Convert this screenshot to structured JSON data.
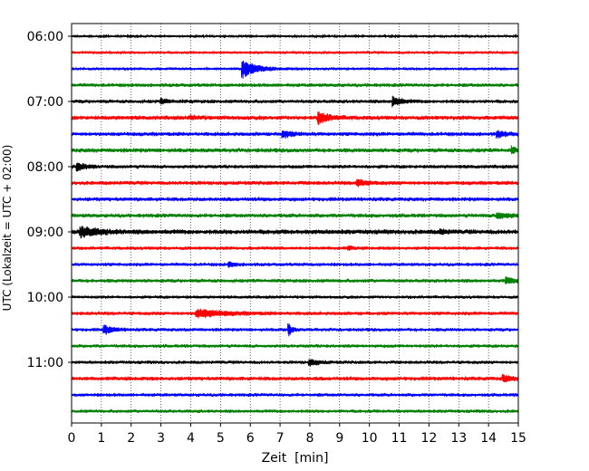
{
  "chart_data": {
    "type": "line",
    "title": "",
    "xlabel": "Zeit  [min]",
    "ylabel": "UTC (Lokalzeit = UTC + 02:00)",
    "xlim": [
      0,
      15
    ],
    "x_ticks": [
      0,
      1,
      2,
      3,
      4,
      5,
      6,
      7,
      8,
      9,
      10,
      11,
      12,
      13,
      14,
      15
    ],
    "y_tick_labels": [
      {
        "row": 0,
        "label": "06:00"
      },
      {
        "row": 4,
        "label": "07:00"
      },
      {
        "row": 8,
        "label": "08:00"
      },
      {
        "row": 12,
        "label": "09:00"
      },
      {
        "row": 16,
        "label": "10:00"
      },
      {
        "row": 20,
        "label": "11:00"
      }
    ],
    "grid": "x-dotted",
    "legend": "none",
    "trace_colors": [
      "#000000",
      "#ff0000",
      "#0000ff",
      "#008000"
    ],
    "rows": [
      {
        "start": "06:00",
        "color": "#000000",
        "noise": 0.18,
        "events": []
      },
      {
        "start": "06:15",
        "color": "#ff0000",
        "noise": 0.22,
        "events": []
      },
      {
        "start": "06:30",
        "color": "#0000ff",
        "noise": 0.22,
        "events": [
          {
            "t": 5.75,
            "amp": 1.6,
            "dur": 0.9
          }
        ]
      },
      {
        "start": "06:45",
        "color": "#008000",
        "noise": 0.28,
        "events": []
      },
      {
        "start": "07:00",
        "color": "#000000",
        "noise": 0.28,
        "events": [
          {
            "t": 10.8,
            "amp": 0.9,
            "dur": 0.5
          },
          {
            "t": 3.0,
            "amp": 0.35,
            "dur": 0.6
          }
        ]
      },
      {
        "start": "07:15",
        "color": "#ff0000",
        "noise": 0.32,
        "events": [
          {
            "t": 8.3,
            "amp": 1.0,
            "dur": 0.7
          },
          {
            "t": 4.0,
            "amp": 0.3,
            "dur": 0.5
          }
        ]
      },
      {
        "start": "07:30",
        "color": "#0000ff",
        "noise": 0.3,
        "events": [
          {
            "t": 7.1,
            "amp": 0.6,
            "dur": 0.6
          },
          {
            "t": 14.3,
            "amp": 0.5,
            "dur": 0.6
          }
        ]
      },
      {
        "start": "07:45",
        "color": "#008000",
        "noise": 0.32,
        "events": [
          {
            "t": 14.8,
            "amp": 0.5,
            "dur": 0.3
          }
        ]
      },
      {
        "start": "08:00",
        "color": "#000000",
        "noise": 0.28,
        "events": [
          {
            "t": 0.2,
            "amp": 0.7,
            "dur": 0.5
          }
        ]
      },
      {
        "start": "08:15",
        "color": "#ff0000",
        "noise": 0.3,
        "events": [
          {
            "t": 9.6,
            "amp": 0.6,
            "dur": 0.6
          }
        ]
      },
      {
        "start": "08:30",
        "color": "#0000ff",
        "noise": 0.3,
        "events": []
      },
      {
        "start": "08:45",
        "color": "#008000",
        "noise": 0.3,
        "events": [
          {
            "t": 14.3,
            "amp": 0.5,
            "dur": 0.8
          }
        ]
      },
      {
        "start": "09:00",
        "color": "#000000",
        "noise": 0.36,
        "events": [
          {
            "t": 0.3,
            "amp": 0.9,
            "dur": 1.2
          },
          {
            "t": 12.4,
            "amp": 0.3,
            "dur": 0.4
          }
        ]
      },
      {
        "start": "09:15",
        "color": "#ff0000",
        "noise": 0.26,
        "events": [
          {
            "t": 9.3,
            "amp": 0.3,
            "dur": 0.3
          }
        ]
      },
      {
        "start": "09:30",
        "color": "#0000ff",
        "noise": 0.26,
        "events": [
          {
            "t": 5.3,
            "amp": 0.4,
            "dur": 0.4
          }
        ]
      },
      {
        "start": "09:45",
        "color": "#008000",
        "noise": 0.28,
        "events": [
          {
            "t": 14.6,
            "amp": 0.5,
            "dur": 0.6
          }
        ]
      },
      {
        "start": "10:00",
        "color": "#000000",
        "noise": 0.24,
        "events": []
      },
      {
        "start": "10:15",
        "color": "#ff0000",
        "noise": 0.28,
        "events": [
          {
            "t": 4.2,
            "amp": 0.7,
            "dur": 1.8
          }
        ]
      },
      {
        "start": "10:30",
        "color": "#0000ff",
        "noise": 0.26,
        "events": [
          {
            "t": 1.1,
            "amp": 0.75,
            "dur": 0.6
          },
          {
            "t": 7.3,
            "amp": 1.1,
            "dur": 0.2
          }
        ]
      },
      {
        "start": "10:45",
        "color": "#008000",
        "noise": 0.26,
        "events": []
      },
      {
        "start": "11:00",
        "color": "#000000",
        "noise": 0.26,
        "events": [
          {
            "t": 8.0,
            "amp": 0.5,
            "dur": 0.6
          }
        ]
      },
      {
        "start": "11:15",
        "color": "#ff0000",
        "noise": 0.3,
        "events": [
          {
            "t": 14.5,
            "amp": 0.55,
            "dur": 0.5
          }
        ]
      },
      {
        "start": "11:30",
        "color": "#0000ff",
        "noise": 0.26,
        "events": []
      },
      {
        "start": "11:45",
        "color": "#008000",
        "noise": 0.26,
        "events": []
      }
    ]
  }
}
